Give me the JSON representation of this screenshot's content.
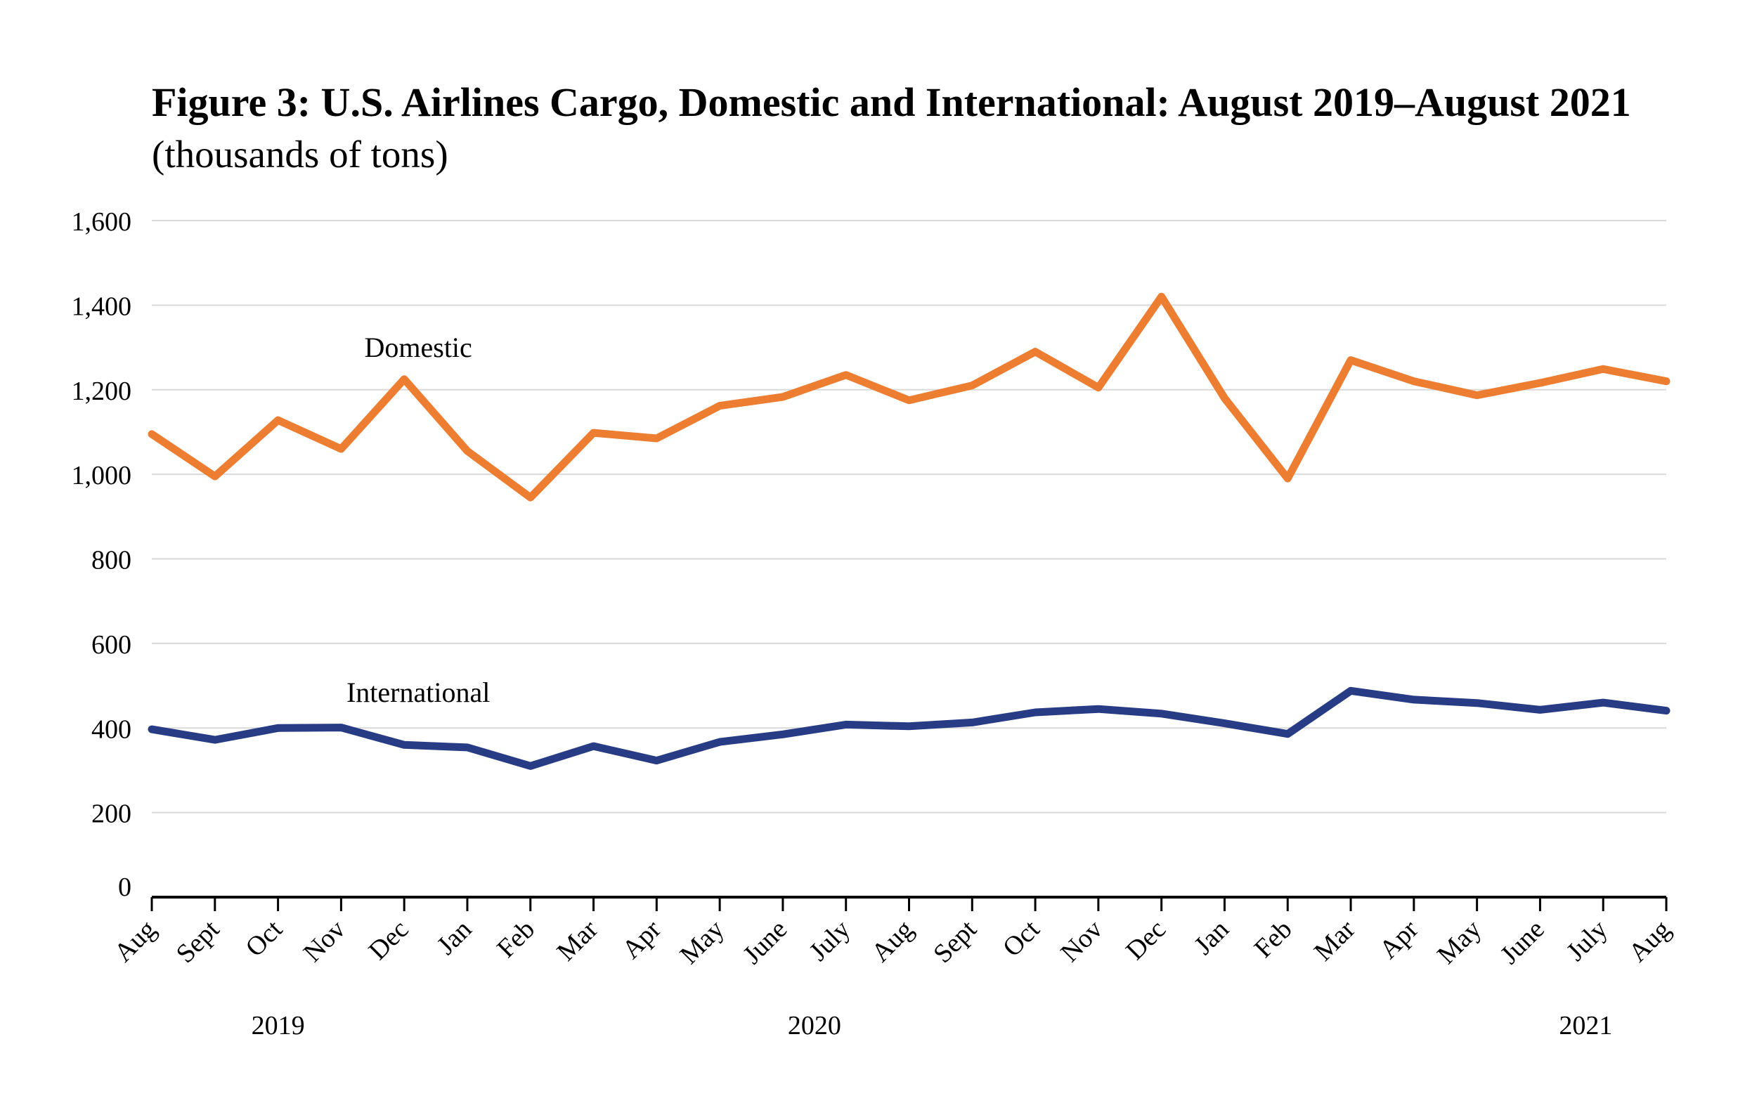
{
  "chart_data": {
    "type": "line",
    "title": "Figure 3: U.S. Airlines Cargo, Domestic and International: August 2019–August 2021",
    "subtitle": "(thousands of tons)",
    "xlabel": "",
    "ylabel": "",
    "ylim": [
      0,
      1600
    ],
    "yticks": [
      "0",
      "200",
      "400",
      "600",
      "800",
      "1,000",
      "1,200",
      "1,400",
      "1,600"
    ],
    "ytick_values": [
      0,
      200,
      400,
      600,
      800,
      1000,
      1200,
      1400,
      1600
    ],
    "grid": true,
    "categories": [
      "Aug",
      "Sept",
      "Oct",
      "Nov",
      "Dec",
      "Jan",
      "Feb",
      "Mar",
      "Apr",
      "May",
      "June",
      "July",
      "Aug",
      "Sept",
      "Oct",
      "Nov",
      "Dec",
      "Jan",
      "Feb",
      "Mar",
      "Apr",
      "May",
      "June",
      "July",
      "Aug"
    ],
    "years": [
      {
        "label": "2019",
        "start": 0,
        "end": 4
      },
      {
        "label": "2020",
        "start": 5,
        "end": 16
      },
      {
        "label": "2021",
        "start": 17,
        "end": 24
      }
    ],
    "series": [
      {
        "name": "Domestic",
        "color": "#ED7D31",
        "label_at": 4,
        "values": [
          1095,
          995,
          1128,
          1060,
          1225,
          1055,
          945,
          1098,
          1085,
          1162,
          1183,
          1235,
          1175,
          1210,
          1290,
          1205,
          1420,
          1180,
          990,
          1270,
          1220,
          1187,
          1216,
          1249,
          1220
        ]
      },
      {
        "name": "International",
        "color": "#283C86",
        "label_at": 4,
        "values": [
          397,
          372,
          400,
          401,
          360,
          354,
          310,
          357,
          323,
          367,
          385,
          408,
          404,
          413,
          437,
          445,
          434,
          411,
          386,
          488,
          467,
          459,
          443,
          460,
          441
        ]
      }
    ]
  }
}
